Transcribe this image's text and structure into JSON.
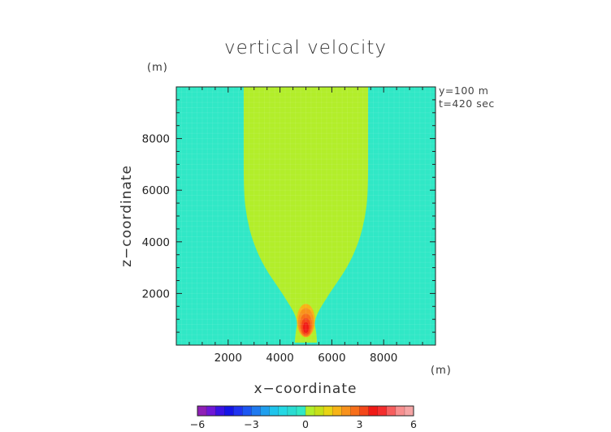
{
  "chart_data": {
    "type": "heatmap",
    "title": "vertical velocity",
    "xlabel": "x−coordinate",
    "ylabel": "z−coordinate",
    "x_unit": "(m)",
    "y_unit": "(m)",
    "annotations": [
      "y=100 m",
      "t=420 sec"
    ],
    "xlim": [
      0,
      10000
    ],
    "ylim": [
      0,
      10000
    ],
    "x_ticks": [
      2000,
      4000,
      6000,
      8000
    ],
    "y_ticks": [
      2000,
      4000,
      6000,
      8000
    ],
    "x_tick_labels": [
      "2000",
      "4000",
      "6000",
      "8000"
    ],
    "y_tick_labels": [
      "2000",
      "4000",
      "6000",
      "8000"
    ],
    "colorbar": {
      "min": -6,
      "max": 6,
      "step": 0.5,
      "tick_values": [
        -6,
        -3,
        0,
        3,
        6
      ],
      "tick_labels": [
        "−6",
        "−3",
        "0",
        "3",
        "6"
      ],
      "colors": [
        "#8f1fb6",
        "#6f17d6",
        "#3a12e3",
        "#1414e6",
        "#1f33f0",
        "#1c56f2",
        "#1f7af0",
        "#1f9fee",
        "#1fc4ec",
        "#24d8e4",
        "#2adcd2",
        "#30e8c6",
        "#b2ee2a",
        "#c6e018",
        "#e8d414",
        "#f7b417",
        "#f8921c",
        "#f76f1a",
        "#f4471a",
        "#f01a16",
        "#f52d2d",
        "#f75e5e",
        "#f88f8f",
        "#f5a5a5"
      ]
    },
    "background_color": "#30e8c6",
    "contour_regions": [
      {
        "level": "0 to 0.5",
        "color": "#b2ee2a",
        "outline_x_left": [
          4570,
          4600,
          4700,
          4100,
          3400,
          2950,
          2700,
          2600,
          2600,
          2600
        ],
        "outline_x_right": [
          5430,
          5400,
          5300,
          5900,
          6600,
          7050,
          7300,
          7400,
          7400,
          7400
        ],
        "outline_z": [
          100,
          500,
          1000,
          2000,
          3000,
          4000,
          5000,
          6000,
          8000,
          10000
        ]
      },
      {
        "level": "0.5 to 1",
        "color": "#f7b417",
        "center_x": 5000,
        "center_z": 950,
        "radius_x": 350,
        "radius_z": 650
      },
      {
        "level": "1 to 1.5",
        "color": "#f8921c",
        "center_x": 5000,
        "center_z": 880,
        "radius_x": 300,
        "radius_z": 560
      },
      {
        "level": "1.5 to 2",
        "color": "#f76f1a",
        "center_x": 5000,
        "center_z": 780,
        "radius_x": 240,
        "radius_z": 440
      },
      {
        "level": "2 to 2.5",
        "color": "#f4471a",
        "center_x": 5000,
        "center_z": 720,
        "radius_x": 180,
        "radius_z": 330
      },
      {
        "level": "2.5 to 3",
        "color": "#f01a16",
        "center_x": 5000,
        "center_z": 680,
        "radius_x": 110,
        "radius_z": 210
      }
    ]
  }
}
